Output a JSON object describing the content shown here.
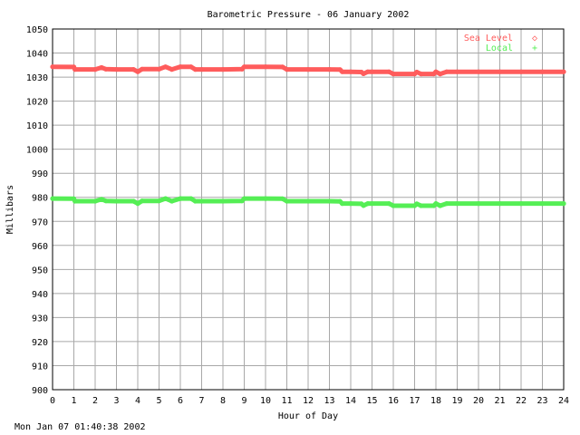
{
  "chart_data": {
    "type": "line",
    "title": "Barometric Pressure - 06 January 2002",
    "xlabel": "Hour of Day",
    "ylabel": "Millibars",
    "xlim": [
      0,
      24
    ],
    "ylim": [
      900,
      1050
    ],
    "xticks": [
      "0",
      "1",
      "2",
      "3",
      "4",
      "5",
      "6",
      "7",
      "8",
      "9",
      "10",
      "11",
      "12",
      "13",
      "14",
      "15",
      "16",
      "17",
      "18",
      "19",
      "20",
      "21",
      "22",
      "23",
      "24"
    ],
    "yticks": [
      "900",
      "910",
      "920",
      "930",
      "940",
      "950",
      "960",
      "970",
      "980",
      "990",
      "1000",
      "1010",
      "1020",
      "1030",
      "1040",
      "1050"
    ],
    "grid": true,
    "legend": "top-right",
    "series": [
      {
        "name": "Sea Level",
        "marker": "◇",
        "color": "#ff5c5c",
        "points": [
          [
            0,
            1034.3
          ],
          [
            1,
            1034.2
          ],
          [
            1.05,
            1033.2
          ],
          [
            2,
            1033.2
          ],
          [
            2.3,
            1034
          ],
          [
            2.5,
            1033.3
          ],
          [
            3,
            1033.2
          ],
          [
            3.8,
            1033.2
          ],
          [
            4,
            1032.2
          ],
          [
            4.2,
            1033.3
          ],
          [
            5,
            1033.3
          ],
          [
            5.3,
            1034.3
          ],
          [
            5.6,
            1033.2
          ],
          [
            6,
            1034.3
          ],
          [
            6.5,
            1034.3
          ],
          [
            6.7,
            1033.2
          ],
          [
            7,
            1033.2
          ],
          [
            8,
            1033.2
          ],
          [
            8.9,
            1033.3
          ],
          [
            9,
            1034.3
          ],
          [
            10,
            1034.3
          ],
          [
            10.8,
            1034.2
          ],
          [
            11,
            1033.2
          ],
          [
            12,
            1033.2
          ],
          [
            13,
            1033.2
          ],
          [
            13.5,
            1033.1
          ],
          [
            13.6,
            1032.2
          ],
          [
            14,
            1032.2
          ],
          [
            14.5,
            1032.1
          ],
          [
            14.6,
            1031.4
          ],
          [
            14.8,
            1032.2
          ],
          [
            15,
            1032.2
          ],
          [
            15.8,
            1032.2
          ],
          [
            16,
            1031.3
          ],
          [
            17,
            1031.3
          ],
          [
            17.1,
            1032.1
          ],
          [
            17.3,
            1031.3
          ],
          [
            17.9,
            1031.3
          ],
          [
            18,
            1032.2
          ],
          [
            18.2,
            1031.3
          ],
          [
            18.5,
            1032.2
          ],
          [
            19,
            1032.2
          ],
          [
            20,
            1032.2
          ],
          [
            21,
            1032.2
          ],
          [
            22,
            1032.2
          ],
          [
            23,
            1032.2
          ],
          [
            24,
            1032.2
          ]
        ]
      },
      {
        "name": "Local",
        "marker": "+",
        "color": "#55ee55",
        "points": [
          [
            0,
            979.5
          ],
          [
            1,
            979.4
          ],
          [
            1.05,
            978.4
          ],
          [
            2,
            978.4
          ],
          [
            2.3,
            979.2
          ],
          [
            2.5,
            978.5
          ],
          [
            3,
            978.4
          ],
          [
            3.8,
            978.4
          ],
          [
            4,
            977.4
          ],
          [
            4.2,
            978.5
          ],
          [
            5,
            978.5
          ],
          [
            5.3,
            979.5
          ],
          [
            5.6,
            978.4
          ],
          [
            6,
            979.5
          ],
          [
            6.5,
            979.5
          ],
          [
            6.7,
            978.4
          ],
          [
            7,
            978.4
          ],
          [
            8,
            978.4
          ],
          [
            8.9,
            978.5
          ],
          [
            9,
            979.5
          ],
          [
            10,
            979.5
          ],
          [
            10.8,
            979.4
          ],
          [
            11,
            978.4
          ],
          [
            12,
            978.4
          ],
          [
            13,
            978.4
          ],
          [
            13.5,
            978.3
          ],
          [
            13.6,
            977.4
          ],
          [
            14,
            977.4
          ],
          [
            14.5,
            977.3
          ],
          [
            14.6,
            976.6
          ],
          [
            14.8,
            977.4
          ],
          [
            15,
            977.4
          ],
          [
            15.8,
            977.4
          ],
          [
            16,
            976.5
          ],
          [
            17,
            976.5
          ],
          [
            17.1,
            977.3
          ],
          [
            17.3,
            976.5
          ],
          [
            17.9,
            976.5
          ],
          [
            18,
            977.4
          ],
          [
            18.2,
            976.5
          ],
          [
            18.5,
            977.4
          ],
          [
            19,
            977.4
          ],
          [
            20,
            977.4
          ],
          [
            21,
            977.4
          ],
          [
            22,
            977.4
          ],
          [
            23,
            977.4
          ],
          [
            24,
            977.4
          ]
        ]
      }
    ]
  },
  "footer": {
    "timestamp": "Mon Jan 07 01:40:38 2002"
  }
}
